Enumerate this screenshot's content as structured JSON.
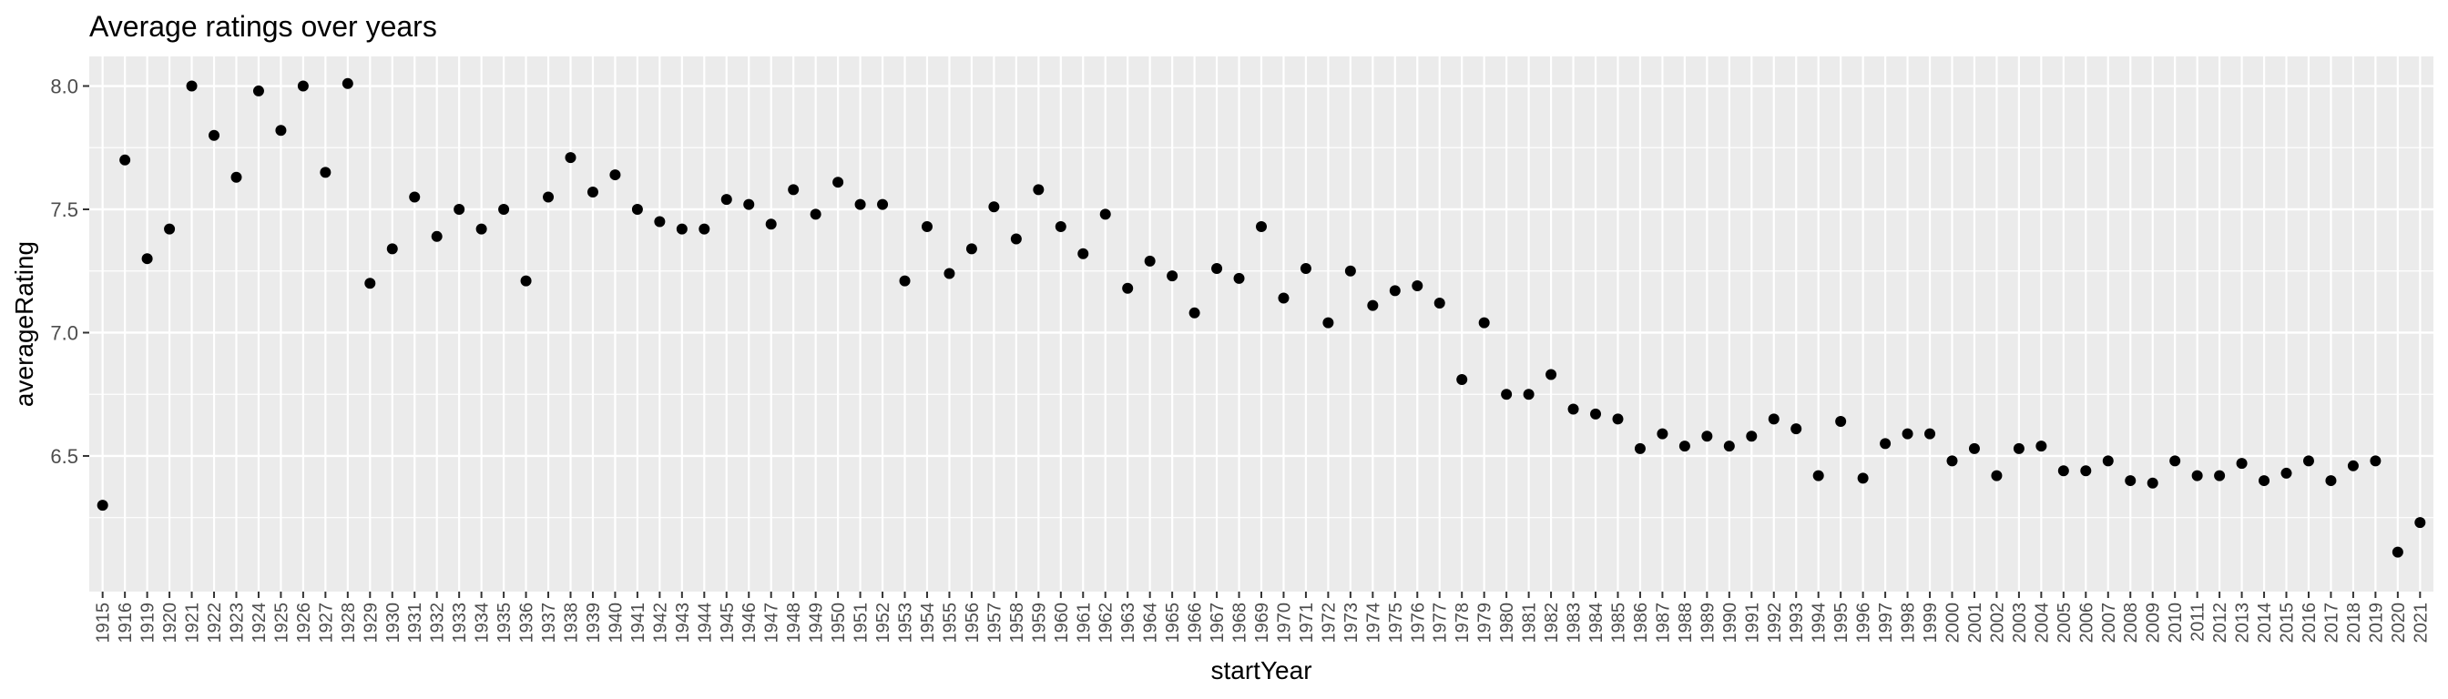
{
  "chart_data": {
    "type": "scatter",
    "title": "Average ratings over years",
    "xlabel": "startYear",
    "ylabel": "averageRating",
    "x_type": "categorical",
    "categories": [
      "1915",
      "1916",
      "1919",
      "1920",
      "1921",
      "1922",
      "1923",
      "1924",
      "1925",
      "1926",
      "1927",
      "1928",
      "1929",
      "1930",
      "1931",
      "1932",
      "1933",
      "1934",
      "1935",
      "1936",
      "1937",
      "1938",
      "1939",
      "1940",
      "1941",
      "1942",
      "1943",
      "1944",
      "1945",
      "1946",
      "1947",
      "1948",
      "1949",
      "1950",
      "1951",
      "1952",
      "1953",
      "1954",
      "1955",
      "1956",
      "1957",
      "1958",
      "1959",
      "1960",
      "1961",
      "1962",
      "1963",
      "1964",
      "1965",
      "1966",
      "1967",
      "1968",
      "1969",
      "1970",
      "1971",
      "1972",
      "1973",
      "1974",
      "1975",
      "1976",
      "1977",
      "1978",
      "1979",
      "1980",
      "1981",
      "1982",
      "1983",
      "1984",
      "1985",
      "1986",
      "1987",
      "1988",
      "1989",
      "1990",
      "1991",
      "1992",
      "1993",
      "1994",
      "1995",
      "1996",
      "1997",
      "1998",
      "1999",
      "2000",
      "2001",
      "2002",
      "2003",
      "2004",
      "2005",
      "2006",
      "2007",
      "2008",
      "2009",
      "2010",
      "2011",
      "2012",
      "2013",
      "2014",
      "2015",
      "2016",
      "2017",
      "2018",
      "2019",
      "2020",
      "2021"
    ],
    "values": [
      6.3,
      7.7,
      7.3,
      7.42,
      8.0,
      7.8,
      7.63,
      7.98,
      7.82,
      8.0,
      7.65,
      8.01,
      7.2,
      7.34,
      7.55,
      7.39,
      7.5,
      7.42,
      7.5,
      7.21,
      7.55,
      7.71,
      7.57,
      7.64,
      7.5,
      7.45,
      7.42,
      7.42,
      7.54,
      7.52,
      7.44,
      7.58,
      7.48,
      7.61,
      7.52,
      7.52,
      7.21,
      7.43,
      7.24,
      7.34,
      7.51,
      7.38,
      7.58,
      7.43,
      7.32,
      7.48,
      7.18,
      7.29,
      7.23,
      7.08,
      7.26,
      7.22,
      7.43,
      7.14,
      7.26,
      7.04,
      7.25,
      7.11,
      7.17,
      7.19,
      7.12,
      6.81,
      7.04,
      6.75,
      6.75,
      6.83,
      6.69,
      6.67,
      6.65,
      6.53,
      6.59,
      6.54,
      6.58,
      6.54,
      6.58,
      6.65,
      6.61,
      6.42,
      6.64,
      6.41,
      6.55,
      6.59,
      6.59,
      6.48,
      6.53,
      6.42,
      6.53,
      6.54,
      6.44,
      6.44,
      6.48,
      6.4,
      6.39,
      6.48,
      6.42,
      6.42,
      6.47,
      6.4,
      6.43,
      6.48,
      6.4,
      6.46,
      6.48,
      6.11,
      6.23
    ],
    "ylim": [
      5.95,
      8.12
    ],
    "y_ticks": [
      6.5,
      7.0,
      7.5,
      8.0
    ],
    "y_tick_labels": [
      "6.5",
      "7.0",
      "7.5",
      "8.0"
    ],
    "grid": true,
    "legend": "none",
    "colors": {
      "panel": "#ebebeb",
      "grid": "#ffffff",
      "point": "#000000",
      "tick_text": "#4d4d4d"
    }
  }
}
